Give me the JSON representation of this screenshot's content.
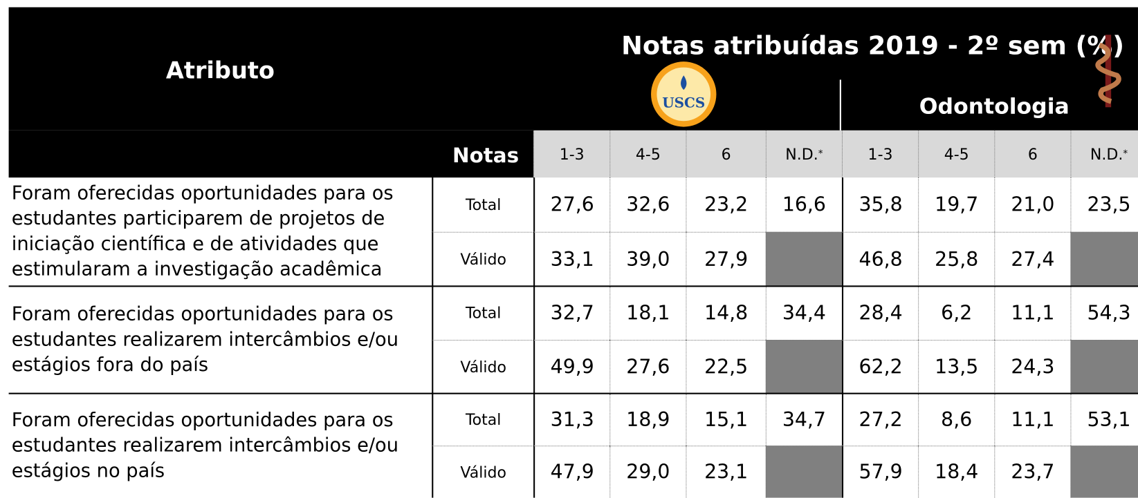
{
  "header": {
    "title": "Notas atribuídas 2019 - 2º sem (%)",
    "attribute_label": "Atributo",
    "notas_label": "Notas",
    "group_label": "Odontologia",
    "logo_text": "USCS",
    "columns": [
      "1-3",
      "4-5",
      "6",
      "N.D.",
      "1-3",
      "4-5",
      "6",
      "N.D."
    ],
    "nd_mark": "*"
  },
  "table": {
    "rows": [
      {
        "attribute_lines": [
          "Foram oferecidas oportunidades para os",
          "estudantes participarem de projetos de",
          "iniciação científica e de atividades que",
          "estimularam a investigação acadêmica"
        ],
        "lines": [
          {
            "label": "Total",
            "values": [
              "27,6",
              "32,6",
              "23,2",
              "16,6",
              "35,8",
              "19,7",
              "21,0",
              "23,5"
            ]
          },
          {
            "label": "Válido",
            "values": [
              "33,1",
              "39,0",
              "27,9",
              null,
              "46,8",
              "25,8",
              "27,4",
              null
            ]
          }
        ]
      },
      {
        "attribute_lines": [
          "Foram oferecidas oportunidades para os",
          "estudantes realizarem intercâmbios e/ou",
          "estágios fora do país"
        ],
        "lines": [
          {
            "label": "Total",
            "values": [
              "32,7",
              "18,1",
              "14,8",
              "34,4",
              "28,4",
              "6,2",
              "11,1",
              "54,3"
            ]
          },
          {
            "label": "Válido",
            "values": [
              "49,9",
              "27,6",
              "22,5",
              null,
              "62,2",
              "13,5",
              "24,3",
              null
            ]
          }
        ]
      },
      {
        "attribute_lines": [
          "Foram oferecidas oportunidades para os",
          "estudantes realizarem intercâmbios e/ou",
          "estágios no país"
        ],
        "lines": [
          {
            "label": "Total",
            "values": [
              "31,3",
              "18,9",
              "15,1",
              "34,7",
              "27,2",
              "8,6",
              "11,1",
              "53,1"
            ]
          },
          {
            "label": "Válido",
            "values": [
              "47,9",
              "29,0",
              "23,1",
              null,
              "57,9",
              "18,4",
              "23,7",
              null
            ]
          }
        ]
      }
    ]
  }
}
